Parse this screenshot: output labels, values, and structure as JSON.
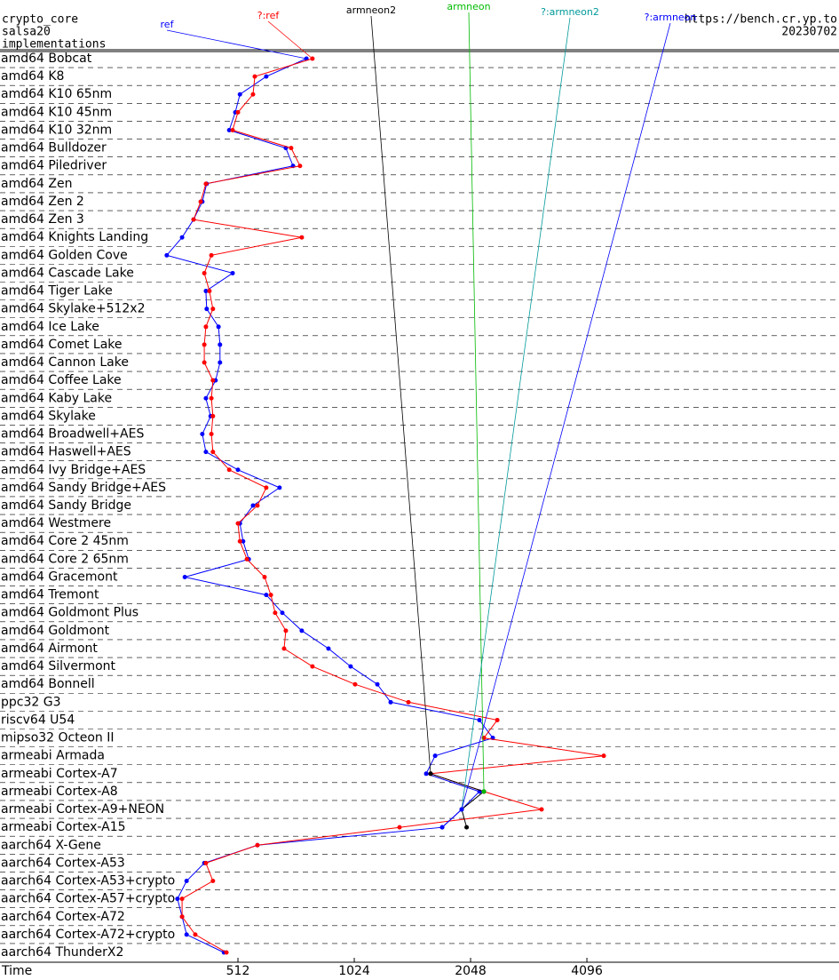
{
  "chart_data": {
    "type": "line",
    "title": "crypto_core",
    "subtitle": "salsa20",
    "header_label": "implementations",
    "source": "https://bench.cr.yp.to",
    "date": "20230702",
    "x_label": "Time",
    "log_x": true,
    "xlim": [
      124,
      18400
    ],
    "xticks": [
      512,
      1024,
      2048,
      4096
    ],
    "categories": [
      "amd64 Bobcat",
      "amd64 K8",
      "amd64 K10 65nm",
      "amd64 K10 45nm",
      "amd64 K10 32nm",
      "amd64 Bulldozer",
      "amd64 Piledriver",
      "amd64 Zen",
      "amd64 Zen 2",
      "amd64 Zen 3",
      "amd64 Knights Landing",
      "amd64 Golden Cove",
      "amd64 Cascade Lake",
      "amd64 Tiger Lake",
      "amd64 Skylake+512x2",
      "amd64 Ice Lake",
      "amd64 Comet Lake",
      "amd64 Cannon Lake",
      "amd64 Coffee Lake",
      "amd64 Kaby Lake",
      "amd64 Skylake",
      "amd64 Broadwell+AES",
      "amd64 Haswell+AES",
      "amd64 Ivy Bridge+AES",
      "amd64 Sandy Bridge+AES",
      "amd64 Sandy Bridge",
      "amd64 Westmere",
      "amd64 Core 2 45nm",
      "amd64 Core 2 65nm",
      "amd64 Gracemont",
      "amd64 Tremont",
      "amd64 Goldmont Plus",
      "amd64 Goldmont",
      "amd64 Airmont",
      "amd64 Silvermont",
      "amd64 Bonnell",
      "ppc32 G3",
      "riscv64 U54",
      "mipso32 Octeon II",
      "armeabi Armada",
      "armeabi Cortex-A7",
      "armeabi Cortex-A8",
      "armeabi Cortex-A9+NEON",
      "armeabi Cortex-A15",
      "aarch64 X-Gene",
      "aarch64 Cortex-A53",
      "aarch64 Cortex-A53+crypto",
      "aarch64 Cortex-A57+crypto",
      "aarch64 Cortex-A72",
      "aarch64 Cortex-A72+crypto",
      "aarch64 ThunderX2"
    ],
    "series": [
      {
        "name": "ref",
        "color": "#0000ff",
        "values": [
          770,
          606,
          518,
          504,
          486,
          681,
          711,
          425,
          414,
          393,
          367,
          335,
          496,
          423,
          425,
          456,
          460,
          460,
          448,
          423,
          435,
          414,
          423,
          512,
          656,
          560,
          518,
          528,
          546,
          373,
          606,
          667,
          749,
          878,
          1002,
          1175,
          1272,
          2159,
          2338,
          1658,
          1572,
          2159,
          1942,
          1729,
          575,
          419,
          377,
          357,
          367,
          377,
          471
        ]
      },
      {
        "name": "?:ref",
        "color": "#ff0000",
        "values": [
          798,
          566,
          560,
          512,
          496,
          703,
          741,
          423,
          410,
          393,
          749,
          437,
          419,
          432,
          441,
          423,
          419,
          419,
          441,
          437,
          441,
          437,
          441,
          486,
          606,
          575,
          512,
          518,
          540,
          600,
          623,
          639,
          681,
          674,
          798,
          1029,
          1414,
          2401,
          2217,
          4529,
          1614,
          2217,
          3127,
          1341,
          575,
          423,
          441,
          367,
          367,
          397,
          478
        ]
      },
      {
        "name": "armneon2",
        "color": "#000000",
        "values": [
          null,
          null,
          null,
          null,
          null,
          null,
          null,
          null,
          null,
          null,
          null,
          null,
          null,
          null,
          null,
          null,
          null,
          null,
          null,
          null,
          null,
          null,
          null,
          null,
          null,
          null,
          null,
          null,
          null,
          null,
          null,
          null,
          null,
          null,
          null,
          null,
          null,
          null,
          null,
          null,
          1614,
          2217,
          1942,
          2000,
          null,
          null,
          null,
          null,
          null,
          null,
          null
        ]
      },
      {
        "name": "armneon",
        "color": "#00bb00",
        "values": [
          null,
          null,
          null,
          null,
          null,
          null,
          null,
          null,
          null,
          null,
          null,
          null,
          null,
          null,
          null,
          null,
          null,
          null,
          null,
          null,
          null,
          null,
          null,
          null,
          null,
          null,
          null,
          null,
          null,
          null,
          null,
          null,
          null,
          null,
          null,
          null,
          null,
          null,
          null,
          null,
          null,
          2217,
          null,
          null,
          null,
          null,
          null,
          null,
          null,
          null,
          null
        ]
      },
      {
        "name": "?:armneon2",
        "color": "#009999",
        "values": [
          null,
          null,
          null,
          null,
          null,
          null,
          null,
          null,
          null,
          null,
          null,
          null,
          null,
          null,
          null,
          null,
          null,
          null,
          null,
          null,
          null,
          null,
          null,
          null,
          null,
          null,
          null,
          null,
          null,
          null,
          null,
          null,
          null,
          null,
          null,
          null,
          null,
          null,
          null,
          null,
          null,
          null,
          1942,
          null,
          null,
          null,
          null,
          null,
          null,
          null,
          null
        ]
      },
      {
        "name": "?:armneon",
        "color": "#0000ff",
        "values": [
          null,
          null,
          null,
          null,
          null,
          null,
          null,
          null,
          null,
          null,
          null,
          null,
          null,
          null,
          null,
          null,
          null,
          null,
          null,
          null,
          null,
          null,
          null,
          null,
          null,
          null,
          null,
          null,
          null,
          null,
          null,
          null,
          null,
          null,
          null,
          null,
          null,
          null,
          null,
          null,
          null,
          null,
          1942,
          1729,
          null,
          null,
          null,
          null,
          null,
          null,
          null
        ]
      }
    ]
  }
}
